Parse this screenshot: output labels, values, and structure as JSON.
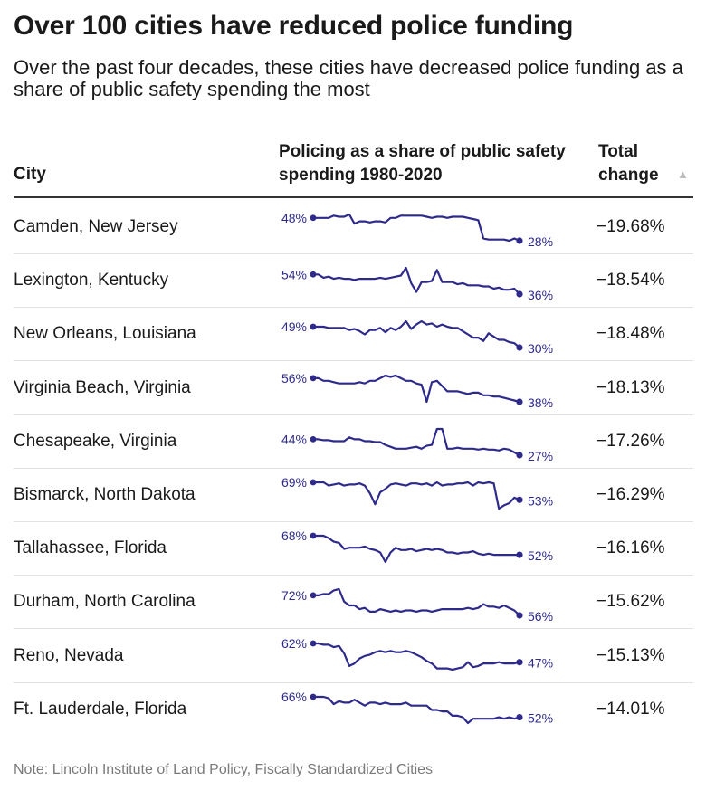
{
  "title": "Over 100 cities have reduced police funding",
  "subtitle": "Over the past four decades, these cities have decreased police funding as a share of public safety spending the most",
  "header": {
    "city": "City",
    "spark": "Policing as a share of public safety spending 1980-2020",
    "change": "Total change"
  },
  "note": "Note: Lincoln Institute of Land Policy, Fiscally Standardized Cities",
  "colors": {
    "line": "#2e2a8c",
    "text": "#1a1a1a",
    "muted": "#7a7a7a"
  },
  "chart_data": {
    "type": "table",
    "columns": [
      "City",
      "Policing as a share of public safety spending 1980-2020",
      "Total change"
    ],
    "years": [
      1980,
      2020
    ],
    "rows": [
      {
        "city": "Camden, New Jersey",
        "start_label": "48%",
        "end_label": "28%",
        "change": "−19.68%",
        "values": [
          48,
          48,
          48,
          48,
          50,
          49,
          49,
          51,
          43,
          45,
          45,
          44,
          45,
          45,
          44,
          48,
          48,
          50,
          50,
          50,
          50,
          50,
          49,
          48,
          49,
          49,
          48,
          49,
          49,
          49,
          48,
          47,
          46,
          30,
          29,
          29,
          29,
          29,
          28,
          30,
          28
        ]
      },
      {
        "city": "Lexington, Kentucky",
        "start_label": "54%",
        "end_label": "36%",
        "change": "−18.54%",
        "values": [
          54,
          54,
          51,
          52,
          50,
          51,
          50,
          50,
          49,
          50,
          50,
          50,
          50,
          51,
          50,
          51,
          52,
          53,
          60,
          46,
          38,
          47,
          47,
          48,
          58,
          47,
          47,
          47,
          45,
          46,
          44,
          44,
          44,
          43,
          43,
          41,
          42,
          40,
          40,
          41,
          36
        ]
      },
      {
        "city": "New Orleans, Louisiana",
        "start_label": "49%",
        "end_label": "30%",
        "change": "−18.48%",
        "values": [
          49,
          49,
          49,
          48,
          48,
          48,
          48,
          46,
          47,
          45,
          42,
          46,
          46,
          48,
          44,
          48,
          46,
          49,
          54,
          47,
          51,
          54,
          51,
          52,
          49,
          51,
          49,
          48,
          48,
          45,
          42,
          39,
          39,
          36,
          43,
          40,
          37,
          37,
          35,
          34,
          30
        ]
      },
      {
        "city": "Virginia Beach, Virginia",
        "start_label": "56%",
        "end_label": "38%",
        "change": "−18.13%",
        "values": [
          56,
          56,
          54,
          54,
          53,
          52,
          52,
          52,
          52,
          53,
          52,
          54,
          54,
          56,
          58,
          57,
          58,
          56,
          54,
          54,
          52,
          51,
          38,
          53,
          54,
          50,
          46,
          46,
          46,
          45,
          44,
          45,
          45,
          43,
          43,
          42,
          42,
          41,
          40,
          39,
          38
        ]
      },
      {
        "city": "Chesapeake, Virginia",
        "start_label": "44%",
        "end_label": "27%",
        "change": "−17.26%",
        "values": [
          44,
          44,
          43,
          43,
          42,
          42,
          42,
          46,
          44,
          44,
          42,
          42,
          41,
          41,
          38,
          36,
          34,
          34,
          34,
          35,
          36,
          34,
          37,
          38,
          55,
          55,
          34,
          34,
          35,
          34,
          34,
          34,
          33,
          34,
          33,
          33,
          32,
          34,
          33,
          30,
          27
        ]
      },
      {
        "city": "Bismarck, North Dakota",
        "start_label": "69%",
        "end_label": "53%",
        "change": "−16.29%",
        "values": [
          69,
          69,
          69,
          66,
          67,
          68,
          66,
          67,
          67,
          68,
          66,
          59,
          49,
          60,
          63,
          67,
          68,
          67,
          66,
          68,
          68,
          67,
          68,
          66,
          69,
          66,
          67,
          67,
          68,
          68,
          69,
          66,
          69,
          68,
          69,
          68,
          45,
          48,
          50,
          55,
          53
        ]
      },
      {
        "city": "Tallahassee, Florida",
        "start_label": "68%",
        "end_label": "52%",
        "change": "−16.16%",
        "values": [
          68,
          68,
          68,
          66,
          63,
          62,
          57,
          58,
          58,
          58,
          59,
          57,
          56,
          54,
          46,
          54,
          58,
          56,
          56,
          57,
          55,
          56,
          57,
          56,
          57,
          56,
          54,
          54,
          53,
          54,
          54,
          55,
          53,
          52,
          53,
          52,
          52,
          52,
          52,
          52,
          52
        ]
      },
      {
        "city": "Durham, North Carolina",
        "start_label": "72%",
        "end_label": "56%",
        "change": "−15.62%",
        "values": [
          72,
          72,
          73,
          73,
          76,
          77,
          67,
          64,
          64,
          61,
          62,
          59,
          59,
          61,
          60,
          59,
          60,
          59,
          60,
          60,
          59,
          60,
          60,
          59,
          60,
          61,
          61,
          61,
          61,
          61,
          62,
          61,
          62,
          65,
          63,
          63,
          62,
          64,
          62,
          60,
          56
        ]
      },
      {
        "city": "Reno, Nevada",
        "start_label": "62%",
        "end_label": "47%",
        "change": "−15.13%",
        "values": [
          62,
          62,
          61,
          61,
          59,
          60,
          54,
          44,
          46,
          50,
          52,
          53,
          55,
          56,
          55,
          56,
          55,
          55,
          56,
          55,
          53,
          51,
          48,
          46,
          42,
          42,
          42,
          41,
          42,
          43,
          47,
          43,
          44,
          46,
          46,
          46,
          47,
          46,
          46,
          46,
          47
        ]
      },
      {
        "city": "Ft. Lauderdale, Florida",
        "start_label": "66%",
        "end_label": "52%",
        "change": "−14.01%",
        "values": [
          66,
          66,
          66,
          65,
          61,
          63,
          62,
          62,
          64,
          62,
          60,
          62,
          62,
          61,
          62,
          61,
          61,
          61,
          62,
          60,
          60,
          60,
          60,
          57,
          57,
          56,
          56,
          53,
          53,
          52,
          48,
          51,
          51,
          51,
          51,
          51,
          52,
          51,
          52,
          51,
          52
        ]
      }
    ]
  }
}
